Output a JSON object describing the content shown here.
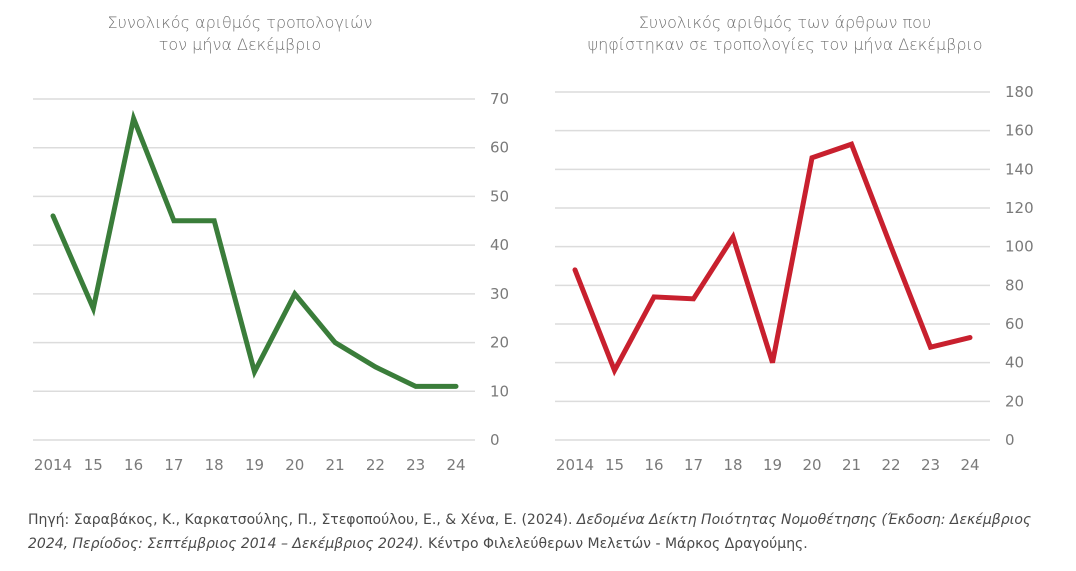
{
  "chart_data": [
    {
      "type": "line",
      "title": "Συνολικός αριθμός τροπολογιών\nτον μήνα Δεκέμβριο",
      "categories": [
        "2014",
        "15",
        "16",
        "17",
        "18",
        "19",
        "20",
        "21",
        "22",
        "23",
        "24"
      ],
      "series": [
        {
          "name": "Τροπολογίες",
          "color": "#3a7d3a",
          "values": [
            46,
            27,
            66,
            45,
            45,
            14,
            30,
            20,
            15,
            11,
            11
          ]
        }
      ],
      "ylim": [
        0,
        70
      ],
      "yticks": [
        0,
        10,
        20,
        30,
        40,
        50,
        60,
        70
      ],
      "y_axis_side": "right",
      "grid": true,
      "xlabel": "",
      "ylabel": ""
    },
    {
      "type": "line",
      "title": "Συνολικός αριθμός των άρθρων που\nψηφίστηκαν σε τροπολογίες τον μήνα Δεκέμβριο",
      "categories": [
        "2014",
        "15",
        "16",
        "17",
        "18",
        "19",
        "20",
        "21",
        "22",
        "23",
        "24"
      ],
      "series": [
        {
          "name": "Άρθρα",
          "color": "#c8202e",
          "values": [
            88,
            36,
            74,
            73,
            105,
            40,
            146,
            153,
            100,
            48,
            53
          ]
        }
      ],
      "ylim": [
        0,
        180
      ],
      "yticks": [
        0,
        20,
        40,
        60,
        80,
        100,
        120,
        140,
        160,
        180
      ],
      "y_axis_side": "right",
      "grid": true,
      "xlabel": "",
      "ylabel": ""
    }
  ],
  "source": {
    "prefix": "Πηγή: Σαραβάκος, Κ., Καρκατσούλης, Π., Στεφοπούλου, Ε., & Χένα, Ε. (2024). ",
    "italic": "Δεδομένα Δείκτη Ποιότητας Νομοθέτησης (Έκδοση: Δεκέμβριος 2024, Περίοδος: Σεπτέμβριος 2014 – Δεκέμβριος 2024).",
    "suffix": " Κέντρο Φιλελεύθερων Μελετών - Μάρκος Δραγούμης."
  }
}
